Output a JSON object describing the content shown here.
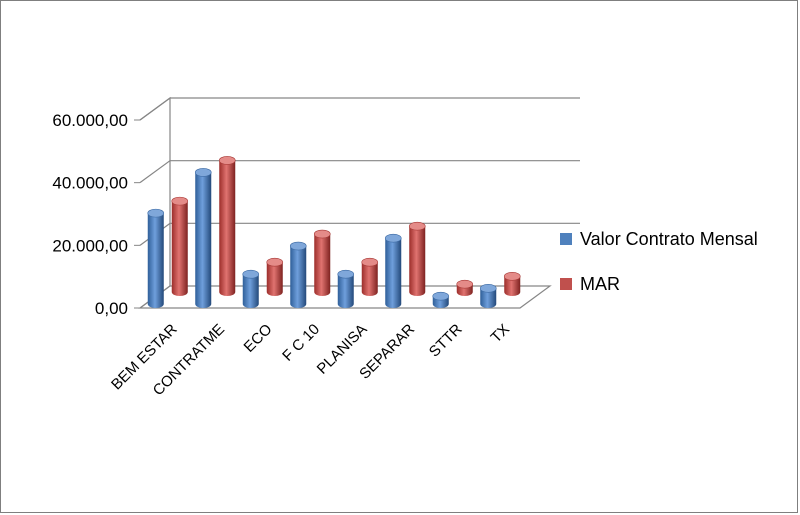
{
  "chart_data": {
    "type": "bar",
    "style": "3d-cylinder",
    "categories": [
      "BEM ESTAR",
      "CONTRATME",
      "ECO",
      "F C 10",
      "PLANISA",
      "SEPARAR",
      "STTR",
      "TX"
    ],
    "series": [
      {
        "name": "Valor Contrato Mensal",
        "color": "#4f81bd",
        "values": [
          29000,
          42000,
          9500,
          18500,
          9500,
          21000,
          2500,
          5000
        ]
      },
      {
        "name": "MAR",
        "color": "#c0504d",
        "values": [
          29000,
          42000,
          9500,
          18500,
          9500,
          21000,
          2500,
          5000
        ]
      }
    ],
    "ytick_labels": [
      "0,00",
      "20.000,00",
      "40.000,00",
      "60.000,00"
    ],
    "ylim": [
      0,
      60000
    ],
    "grid": true,
    "legend": "right",
    "title": "",
    "xlabel": "",
    "ylabel": ""
  }
}
